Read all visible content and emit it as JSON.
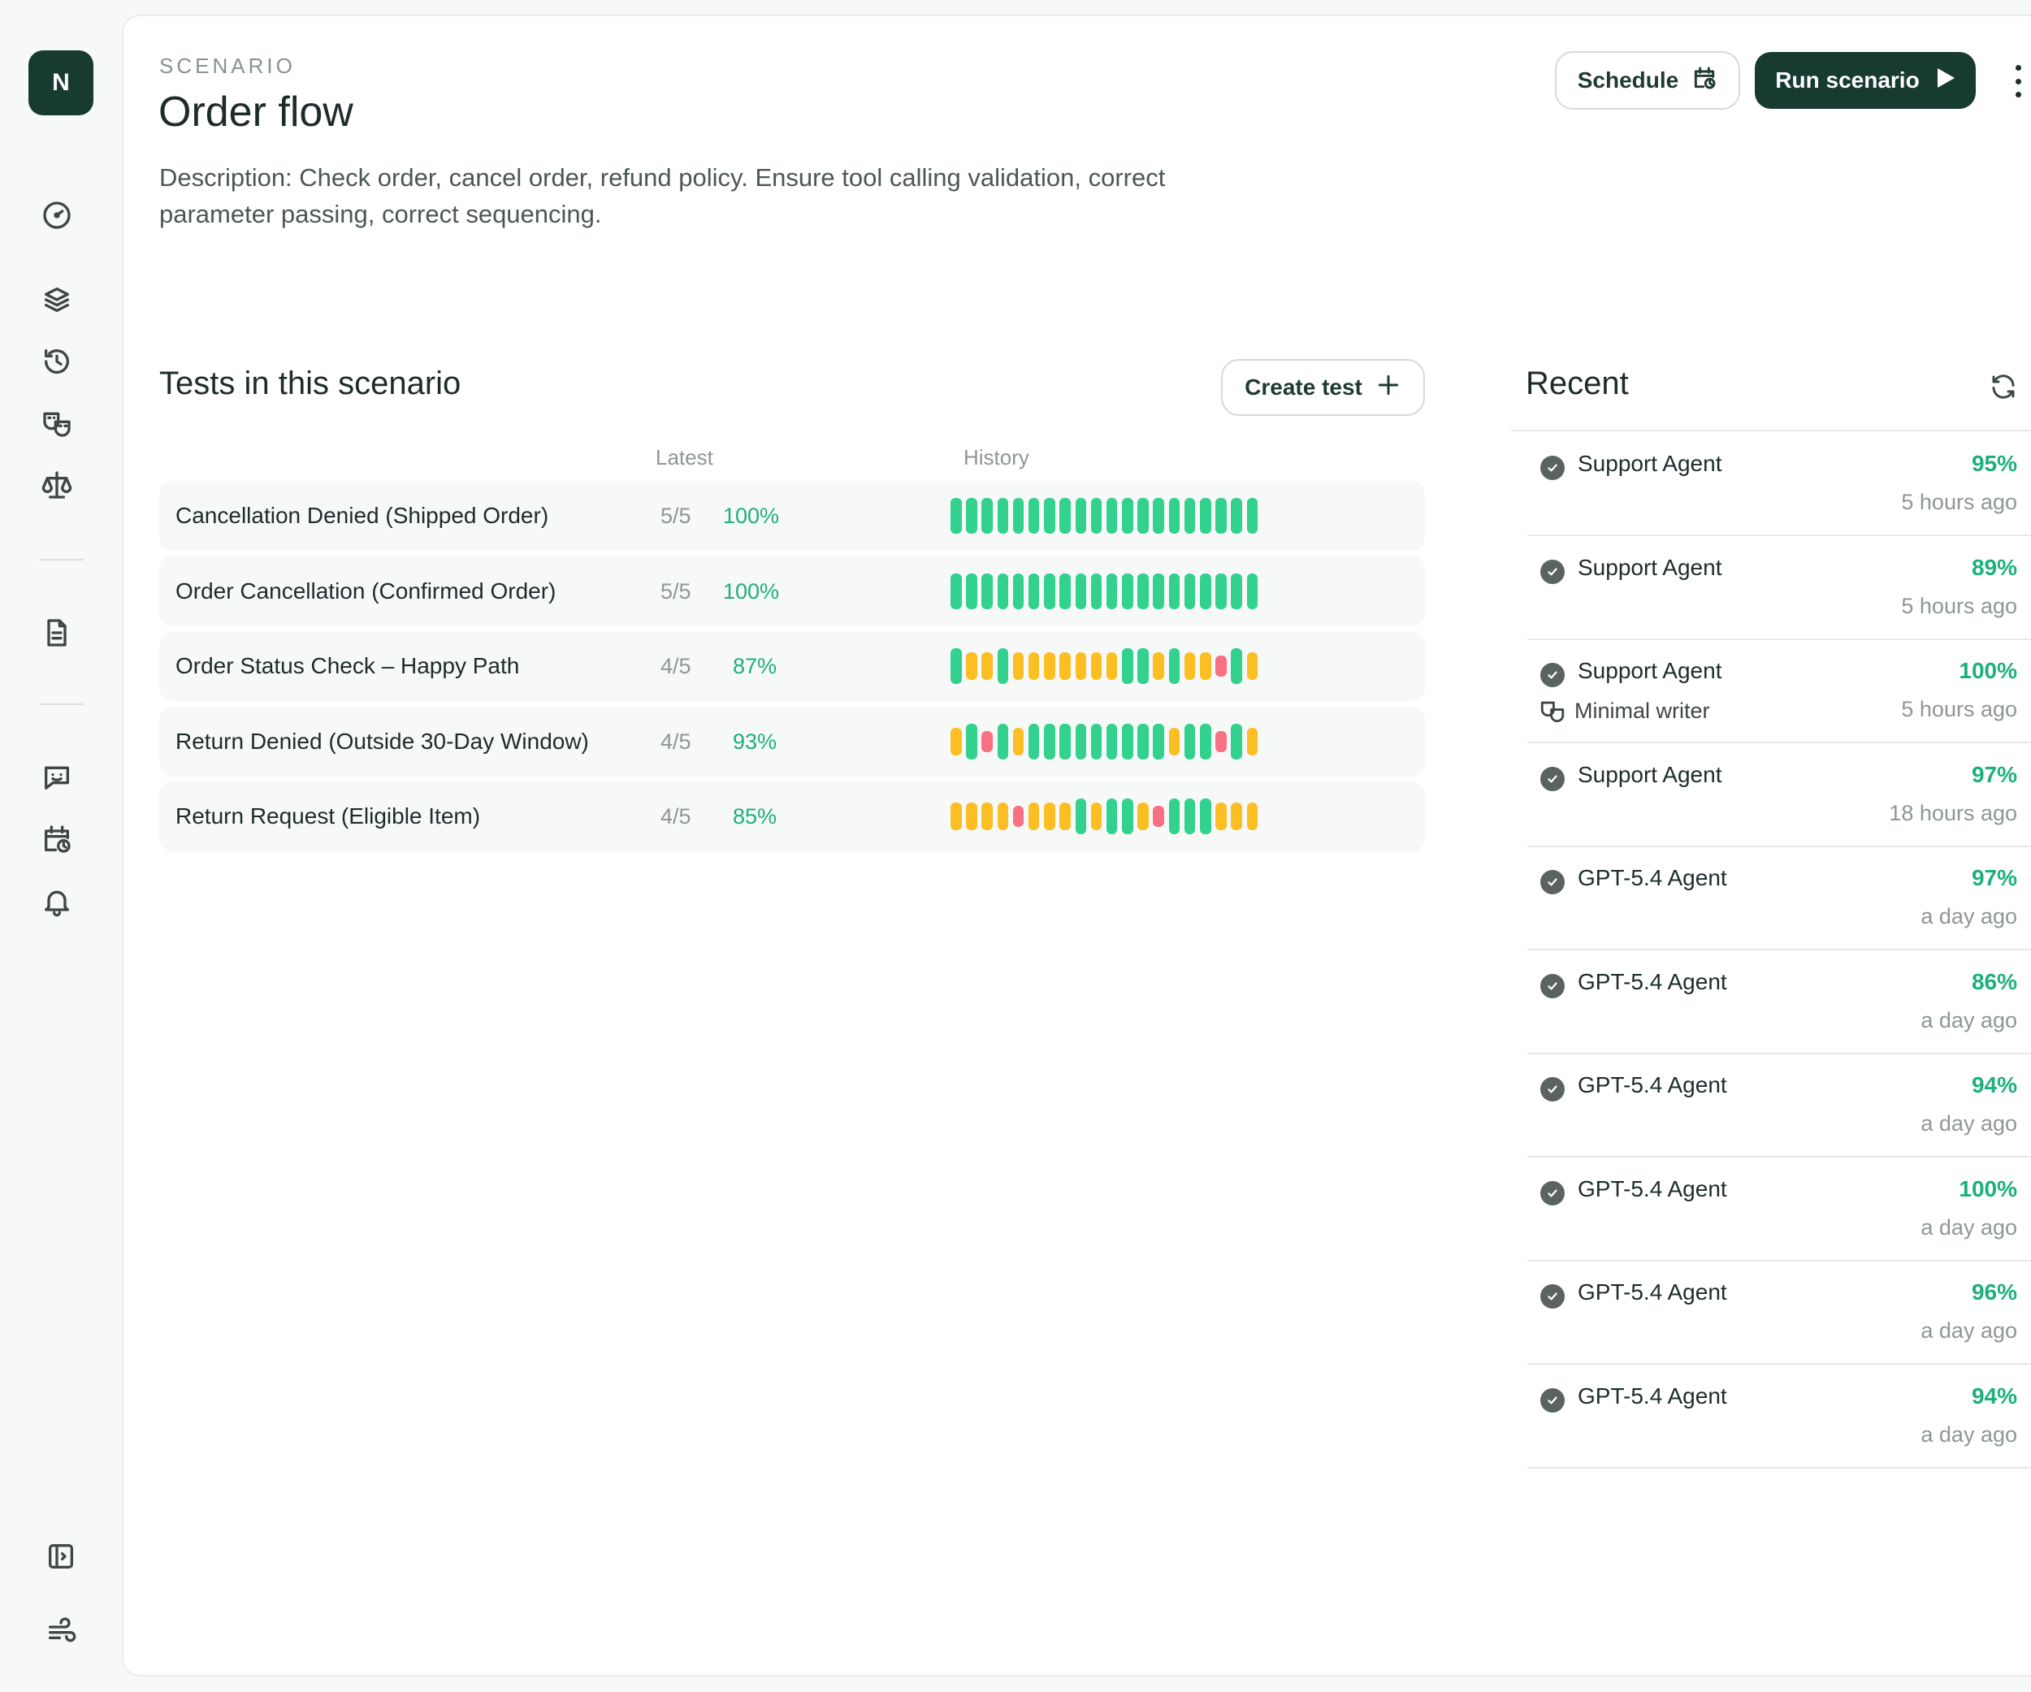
{
  "sidebar": {
    "logo_letter": "N",
    "icons": [
      "dashboard-icon",
      "layers-icon",
      "history-icon",
      "personas-icon",
      "scales-icon",
      "document-icon",
      "chat-icon",
      "calendar-clock-icon",
      "bell-icon",
      "collapse-sidebar-icon",
      "wind-icon"
    ]
  },
  "header": {
    "eyebrow": "SCENARIO",
    "title": "Order flow",
    "description": "Description: Check order, cancel order, refund policy. Ensure tool calling validation, correct parameter passing, correct sequencing.",
    "schedule_label": "Schedule",
    "run_label": "Run scenario"
  },
  "tests": {
    "title": "Tests in this scenario",
    "create_label": "Create test",
    "col_latest": "Latest",
    "col_history": "History",
    "rows": [
      {
        "name": "Cancellation Denied (Shipped Order)",
        "latest": "5/5",
        "pct": "100%",
        "history": "gggggggggggggggggggg"
      },
      {
        "name": "Order Cancellation (Confirmed Order)",
        "latest": "5/5",
        "pct": "100%",
        "history": "gggggggggggggggggggg"
      },
      {
        "name": "Order Status Check – Happy Path",
        "latest": "4/5",
        "pct": "87%",
        "history": "gyygyyyyyyyggygyyrgy"
      },
      {
        "name": "Return Denied (Outside 30-Day Window)",
        "latest": "4/5",
        "pct": "93%",
        "history": "ygrgygggggggggyggrgy"
      },
      {
        "name": "Return Request (Eligible Item)",
        "latest": "4/5",
        "pct": "85%",
        "history": "yyyyryyygyggyrgggyyy"
      }
    ]
  },
  "recent": {
    "title": "Recent",
    "items": [
      {
        "agent": "Support Agent",
        "score": "95%",
        "time": "5 hours ago",
        "sub": ""
      },
      {
        "agent": "Support Agent",
        "score": "89%",
        "time": "5 hours ago",
        "sub": ""
      },
      {
        "agent": "Support Agent",
        "score": "100%",
        "time": "5 hours ago",
        "sub": "Minimal writer"
      },
      {
        "agent": "Support Agent",
        "score": "97%",
        "time": "18 hours ago",
        "sub": ""
      },
      {
        "agent": "GPT-5.4 Agent",
        "score": "97%",
        "time": "a day ago",
        "sub": ""
      },
      {
        "agent": "GPT-5.4 Agent",
        "score": "86%",
        "time": "a day ago",
        "sub": ""
      },
      {
        "agent": "GPT-5.4 Agent",
        "score": "94%",
        "time": "a day ago",
        "sub": ""
      },
      {
        "agent": "GPT-5.4 Agent",
        "score": "100%",
        "time": "a day ago",
        "sub": ""
      },
      {
        "agent": "GPT-5.4 Agent",
        "score": "96%",
        "time": "a day ago",
        "sub": ""
      },
      {
        "agent": "GPT-5.4 Agent",
        "score": "94%",
        "time": "a day ago",
        "sub": ""
      }
    ]
  },
  "colors": {
    "pass": "#33d18e",
    "partial": "#fbbf24",
    "fail": "#f87183",
    "accent": "#173b30",
    "score_text": "#1db07a"
  }
}
